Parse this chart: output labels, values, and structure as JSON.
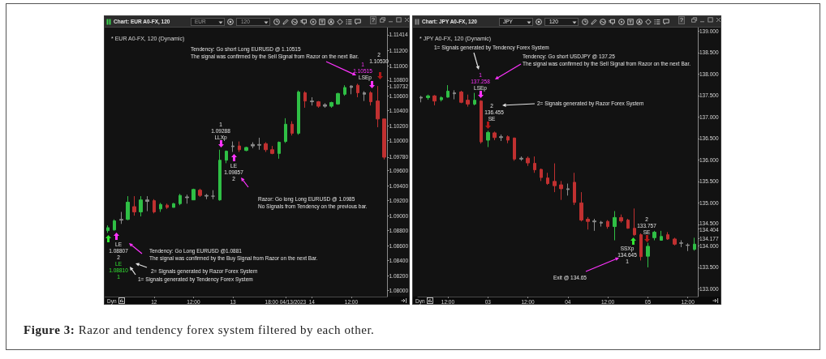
{
  "chart_data": [
    {
      "type": "candlestick",
      "title": "* EUR A0-FX, 120 (Dynamic)",
      "categories": [
        null,
        null,
        null,
        null,
        null,
        null,
        null,
        "12",
        null,
        null,
        null,
        null,
        null,
        "12:00",
        null,
        null,
        null,
        null,
        null,
        "13",
        null,
        null,
        null,
        null,
        null,
        null,
        null,
        "18:00 04/13/2023",
        null,
        null,
        null,
        "14",
        null,
        null,
        null,
        null,
        null,
        "12:00",
        null,
        null,
        null,
        null,
        null
      ],
      "ohlc": [
        [
          1.088,
          1.0887,
          1.0877,
          1.0884
        ],
        [
          1.0881,
          1.0895,
          1.088,
          1.0893
        ],
        [
          1.0895,
          1.0905,
          1.0889,
          1.0894
        ],
        [
          1.0895,
          1.0926,
          1.0894,
          1.0918
        ],
        [
          1.0912,
          1.0926,
          1.09,
          1.0905
        ],
        [
          1.0905,
          1.0926,
          1.0899,
          1.0921
        ],
        [
          1.0921,
          1.0926,
          1.0906,
          1.0919
        ],
        [
          1.092,
          1.0922,
          1.0903,
          1.0905
        ],
        [
          1.0909,
          1.0917,
          1.0905,
          1.0915
        ],
        [
          1.0914,
          1.0916,
          1.0909,
          1.0911
        ],
        [
          1.0911,
          1.0917,
          1.0911,
          1.0916
        ],
        [
          1.0916,
          1.0929,
          1.0914,
          1.0927
        ],
        [
          1.0925,
          1.0928,
          1.0916,
          1.0924
        ],
        [
          1.0921,
          1.0936,
          1.0921,
          1.0935
        ],
        [
          1.0934,
          1.0936,
          1.0925,
          1.0927
        ],
        [
          1.0927,
          1.0929,
          1.0922,
          1.0926
        ],
        [
          1.0926,
          1.0934,
          1.0922,
          1.0926
        ],
        [
          1.0921,
          1.0988,
          1.092,
          1.0974
        ],
        [
          1.0974,
          1.0987,
          1.097,
          1.0986
        ],
        [
          1.0993,
          1.0999,
          1.0985,
          1.0992
        ],
        [
          1.0993,
          1.0999,
          1.0985,
          1.0988
        ],
        [
          1.0987,
          1.0992,
          1.0986,
          1.0991
        ],
        [
          1.0993,
          1.0998,
          1.099,
          1.0995
        ],
        [
          1.0995,
          1.1004,
          1.0988,
          1.0994
        ],
        [
          1.0996,
          1.0998,
          1.0985,
          1.0988
        ],
        [
          1.0988,
          1.0993,
          1.0982,
          1.0983
        ],
        [
          1.0983,
          1.0999,
          1.0976,
          1.0998
        ],
        [
          1.0999,
          1.103,
          1.0997,
          1.1022
        ],
        [
          1.1022,
          1.1026,
          1.1007,
          1.101
        ],
        [
          1.101,
          1.1067,
          1.1008,
          1.1065
        ],
        [
          1.1064,
          1.1066,
          1.1044,
          1.1053
        ],
        [
          1.1053,
          1.1058,
          1.1047,
          1.1052
        ],
        [
          1.1052,
          1.1053,
          1.1044,
          1.1046
        ],
        [
          1.1048,
          1.105,
          1.1044,
          1.1046
        ],
        [
          1.1046,
          1.1052,
          1.1044,
          1.1051
        ],
        [
          1.1049,
          1.1064,
          1.1048,
          1.1063
        ],
        [
          1.1062,
          1.1074,
          1.106,
          1.1071
        ],
        [
          1.1073,
          1.1074,
          1.1062,
          1.1071
        ],
        [
          1.1074,
          1.1076,
          1.1058,
          1.1064
        ],
        [
          1.1064,
          1.1066,
          1.1053,
          1.1062
        ],
        [
          1.1064,
          1.1066,
          1.1047,
          1.1052
        ],
        [
          1.1053,
          1.1073,
          1.1018,
          1.1029
        ],
        [
          1.1029,
          1.1029,
          1.0975,
          1.0978
        ]
      ],
      "colors": [
        "#2fbf45",
        "#2fbf45",
        "#8c8c8c",
        "#2fbf45",
        "#c03030",
        "#2fbf45",
        "#8c8c8c",
        "#c03030",
        "#2fbf45",
        "#c03030",
        "#2fbf45",
        "#2fbf45",
        "#8c8c8c",
        "#2fbf45",
        "#c03030",
        "#8c8c8c",
        "#8c8c8c",
        "#2fbf45",
        "#2fbf45",
        "#8c8c8c",
        "#c03030",
        "#2fbf45",
        "#8c8c8c",
        "#8c8c8c",
        "#c03030",
        "#c03030",
        "#2fbf45",
        "#2fbf45",
        "#c03030",
        "#2fbf45",
        "#c03030",
        "#8c8c8c",
        "#c03030",
        "#8c8c8c",
        "#2fbf45",
        "#2fbf45",
        "#2fbf45",
        "#8c8c8c",
        "#c03030",
        "#8c8c8c",
        "#c03030",
        "#c03030",
        "#c03030"
      ],
      "ylim": [
        1.0792,
        1.1151
      ],
      "yticks": [
        {
          "value": 1.08,
          "label": "1.08000"
        },
        {
          "value": 1.082,
          "label": "1.08200"
        },
        {
          "value": 1.084,
          "label": "1.08400"
        },
        {
          "value": 1.086,
          "label": "1.08600"
        },
        {
          "value": 1.088,
          "label": "1.08800"
        },
        {
          "value": 1.09,
          "label": "1.09000"
        },
        {
          "value": 1.092,
          "label": "1.09200"
        },
        {
          "value": 1.094,
          "label": "1.09400"
        },
        {
          "value": 1.096,
          "label": "1.09600"
        },
        {
          "value": 1.0978,
          "label": "1.09780"
        },
        {
          "value": 1.1,
          "label": "1.10000"
        },
        {
          "value": 1.102,
          "label": "1.10200"
        },
        {
          "value": 1.104,
          "label": "1.10400"
        },
        {
          "value": 1.106,
          "label": "1.10600"
        },
        {
          "value": 1.10732,
          "label": "1.10732"
        },
        {
          "value": 1.108,
          "label": "1.10800"
        },
        {
          "value": 1.11,
          "label": "1.11000"
        },
        {
          "value": 1.112,
          "label": "1.11200"
        },
        {
          "value": 1.11414,
          "label": "1.11414"
        }
      ],
      "annotations": [
        "Chart: EUR A0-FX, 120",
        "EUR",
        "120",
        "?",
        "Tendency: Go short Long EURUSD @ 1.10515",
        "The signal was confirmed by the Sell Signal from Razor on the next Bar.",
        "2",
        "1.10530",
        "1",
        "1.10515",
        "LSEp",
        "1",
        "1.09288",
        "LLXp",
        "LE",
        "1.09857",
        "2",
        "Razor: Go long Long EURUSD @ 1.0985",
        "No Signals from Tendency on the previous bar.",
        "LE",
        "1.08807",
        "2",
        "LE",
        "1.08810",
        "1",
        "Tendency: Go Long EURUSD @1.0881",
        "The signal was confirmed by the Buy Signal from Razor on the next Bar.",
        "2= Signals generated by Razor Forex System",
        "1= Signals generated by Tendency Forex System",
        "Dyn"
      ]
    },
    {
      "type": "candlestick",
      "title": "* JPY A0-FX, 120 (Dynamic)",
      "categories": [
        null,
        null,
        null,
        null,
        "12:00",
        null,
        null,
        null,
        null,
        null,
        "03",
        null,
        null,
        null,
        null,
        null,
        "12:00",
        null,
        null,
        null,
        null,
        null,
        "04",
        null,
        null,
        null,
        null,
        null,
        "12:00",
        null,
        null,
        null,
        null,
        null,
        "05",
        null,
        null,
        null,
        null,
        null,
        "12:00",
        null
      ],
      "ohlc": [
        [
          137.46,
          137.49,
          137.34,
          137.44
        ],
        [
          137.45,
          137.52,
          137.4,
          137.49
        ],
        [
          137.49,
          137.51,
          137.27,
          137.37
        ],
        [
          137.4,
          137.48,
          137.36,
          137.45
        ],
        [
          137.46,
          137.74,
          137.45,
          137.6
        ],
        [
          137.56,
          137.62,
          137.41,
          137.54
        ],
        [
          137.58,
          137.61,
          137.32,
          137.34
        ],
        [
          137.39,
          137.52,
          137.24,
          137.3
        ],
        [
          137.3,
          137.56,
          137.27,
          137.39
        ],
        [
          137.37,
          137.39,
          136.38,
          136.42
        ],
        [
          136.46,
          136.68,
          136.3,
          136.64
        ],
        [
          136.63,
          136.66,
          136.46,
          136.52
        ],
        [
          136.54,
          136.59,
          136.44,
          136.52
        ],
        [
          136.54,
          136.57,
          136.39,
          136.46
        ],
        [
          136.51,
          136.52,
          135.98,
          136.02
        ],
        [
          136.02,
          136.08,
          135.98,
          136.04
        ],
        [
          136.04,
          136.08,
          135.86,
          135.93
        ],
        [
          135.92,
          136.08,
          135.7,
          135.77
        ],
        [
          135.78,
          135.8,
          135.51,
          135.59
        ],
        [
          135.58,
          135.7,
          135.42,
          135.45
        ],
        [
          135.5,
          135.92,
          135.25,
          135.4
        ],
        [
          135.42,
          135.51,
          135.07,
          135.33
        ],
        [
          135.33,
          135.45,
          135.17,
          135.31
        ],
        [
          135.48,
          135.7,
          134.95,
          135.01
        ],
        [
          135.0,
          135.25,
          134.57,
          134.6
        ],
        [
          134.62,
          134.67,
          134.38,
          134.57
        ],
        [
          134.58,
          134.63,
          134.35,
          134.56
        ],
        [
          134.55,
          134.58,
          134.45,
          134.53
        ],
        [
          134.57,
          134.6,
          134.4,
          134.45
        ],
        [
          134.45,
          134.81,
          134.13,
          134.66
        ],
        [
          134.66,
          134.73,
          134.54,
          134.58
        ],
        [
          134.6,
          134.63,
          134.4,
          134.41
        ],
        [
          134.41,
          134.87,
          134.23,
          134.26
        ],
        [
          134.26,
          134.29,
          133.66,
          133.75
        ],
        [
          133.76,
          134.07,
          133.5,
          133.99
        ],
        [
          134.19,
          134.35,
          134.13,
          134.32
        ],
        [
          134.13,
          134.35,
          134.12,
          134.22
        ],
        [
          134.26,
          134.32,
          134.14,
          134.16
        ],
        [
          134.16,
          134.19,
          134.01,
          134.04
        ],
        [
          134.07,
          134.13,
          133.97,
          134.06
        ],
        [
          134.02,
          134.06,
          133.88,
          134.01
        ],
        [
          133.92,
          134.19,
          133.89,
          134.04
        ]
      ],
      "colors": [
        "#8c8c8c",
        "#2fbf45",
        "#c03030",
        "#2fbf45",
        "#2fbf45",
        "#8c8c8c",
        "#c03030",
        "#c03030",
        "#2fbf45",
        "#c03030",
        "#2fbf45",
        "#c03030",
        "#8c8c8c",
        "#c03030",
        "#c03030",
        "#8c8c8c",
        "#c03030",
        "#c03030",
        "#c03030",
        "#c03030",
        "#c03030",
        "#c03030",
        "#8c8c8c",
        "#c03030",
        "#c03030",
        "#c03030",
        "#8c8c8c",
        "#8c8c8c",
        "#c03030",
        "#2fbf45",
        "#c03030",
        "#c03030",
        "#c03030",
        "#c03030",
        "#2fbf45",
        "#2fbf45",
        "#2fbf45",
        "#c03030",
        "#c03030",
        "#8c8c8c",
        "#8c8c8c",
        "#2fbf45"
      ],
      "ylim": [
        132.82,
        139.08
      ],
      "yticks": [
        {
          "value": 133,
          "label": "133.000"
        },
        {
          "value": 133.5,
          "label": "133.500"
        },
        {
          "value": 134,
          "label": "134.000"
        },
        {
          "value": 134.177,
          "label": "134.177"
        },
        {
          "value": 134.404,
          "label": "134.404"
        },
        {
          "value": 134.5,
          "label": "134.500"
        },
        {
          "value": 135,
          "label": "135.000"
        },
        {
          "value": 135.5,
          "label": "135.500"
        },
        {
          "value": 136,
          "label": "136.000"
        },
        {
          "value": 136.5,
          "label": "136.500"
        },
        {
          "value": 137,
          "label": "137.000"
        },
        {
          "value": 137.5,
          "label": "137.500"
        },
        {
          "value": 138,
          "label": "138.000"
        },
        {
          "value": 138.5,
          "label": "138.500"
        },
        {
          "value": 139,
          "label": "139.000"
        }
      ],
      "annotations": [
        "Chart: JPY A0-FX, 120",
        "JPY",
        "120",
        "?",
        "1= Signals generated by Tendency Forex System",
        "1",
        "137.258",
        "LSEp",
        "Tendency: Go short USDJPY @ 137.25",
        "The signal was confirmed by the Sell Signal from Razor on the next Bar.",
        "2",
        "136.455",
        "SE",
        "2= Signals generated by Razor Forex System",
        "Exit @ 134.65",
        "SSXp",
        "134.645",
        "1",
        "2",
        "133.757",
        "SE",
        "Dyn",
        "Figure 3: Razor and tendency forex system filtered by each other."
      ]
    }
  ]
}
